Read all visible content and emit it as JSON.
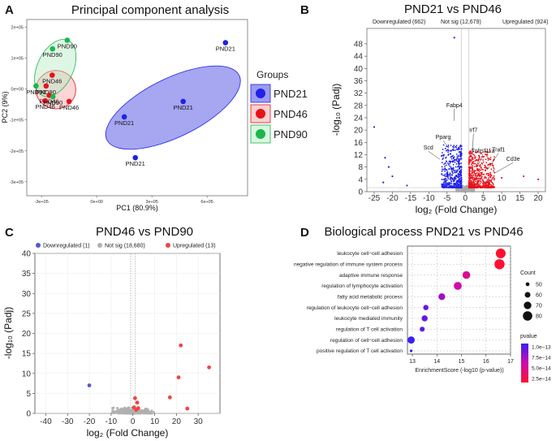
{
  "panels": {
    "a": {
      "letter": "A",
      "title": "Principal component analysis"
    },
    "b": {
      "letter": "B",
      "title": "PND21 vs PND46"
    },
    "c": {
      "letter": "C",
      "title": "PND46 vs PND90"
    },
    "d": {
      "letter": "D",
      "title": "Biological process PND21 vs PND46"
    }
  },
  "chart_data": [
    {
      "id": "pca",
      "type": "scatter",
      "title": "Principal component analysis",
      "xlabel": "PC1 (80.9%)",
      "ylabel": "PC2 (9%)",
      "xlim": [
        -380000,
        820000
      ],
      "ylim": [
        -345000,
        225000
      ],
      "xticks": [
        {
          "v": -300000,
          "label": "-3e+05"
        },
        {
          "v": 0,
          "label": "0e+00"
        },
        {
          "v": 300000,
          "label": "3e+05"
        },
        {
          "v": 600000,
          "label": "6e+05"
        }
      ],
      "yticks": [
        {
          "v": 200000,
          "label": "2e+05"
        },
        {
          "v": 100000,
          "label": "1e+05"
        },
        {
          "v": 0,
          "label": "0e+00"
        },
        {
          "v": -100000,
          "label": "-1e+05"
        },
        {
          "v": -200000,
          "label": "-2e+05"
        },
        {
          "v": -300000,
          "label": "-3e+05"
        }
      ],
      "legend_title": "Groups",
      "groups": [
        {
          "name": "PND21",
          "color": "#1f22e8",
          "fill": "#3a3ae0",
          "points": [
            {
              "x": 700000,
              "y": 150000,
              "label": "PND21"
            },
            {
              "x": 470000,
              "y": -40000,
              "label": "PND21"
            },
            {
              "x": 150000,
              "y": -90000,
              "label": "PND21"
            },
            {
              "x": 210000,
              "y": -222000,
              "label": "PND21"
            }
          ],
          "ellipse": {
            "cx": 415000,
            "cy": -60000,
            "rx": 400000,
            "ry": 95000,
            "angle_deg": 26
          }
        },
        {
          "name": "PND46",
          "color": "#e8111a",
          "fill": "#f4a5a5",
          "points": [
            {
              "x": -242000,
              "y": 45000,
              "label": "PND46"
            },
            {
              "x": -275000,
              "y": 10000,
              "label": "PND90"
            },
            {
              "x": -258000,
              "y": -20000,
              "label": "PND46"
            },
            {
              "x": -280000,
              "y": -38000,
              "label": "PND46"
            },
            {
              "x": -150000,
              "y": -40000,
              "label": "PND46"
            }
          ],
          "ellipse": {
            "cx": -222000,
            "cy": -2000,
            "rx": 108000,
            "ry": 62000,
            "angle_deg": 0
          }
        },
        {
          "name": "PND90",
          "color": "#19b84a",
          "fill": "#b9ecc6",
          "points": [
            {
              "x": -160000,
              "y": 158000,
              "label": "PND90"
            },
            {
              "x": -240000,
              "y": 130000,
              "label": "PND90"
            },
            {
              "x": -330000,
              "y": 10000,
              "label": "PND90"
            },
            {
              "x": -238000,
              "y": -25000,
              "label": "PND90"
            }
          ],
          "ellipse": {
            "cx": -225000,
            "cy": 68000,
            "rx": 165000,
            "ry": 58000,
            "angle_deg": 65
          }
        }
      ]
    },
    {
      "id": "volcano_b",
      "type": "scatter",
      "title": "PND21 vs PND46",
      "xlabel": "log₂ (Fold Change)",
      "ylabel": "-log₁₀ (Padj)",
      "xlim": [
        -27,
        22
      ],
      "ylim": [
        0,
        53
      ],
      "xticks": [
        -25,
        -20,
        -15,
        -10,
        -5,
        0,
        5,
        10,
        15,
        20
      ],
      "yticks": [
        0,
        4,
        8,
        12,
        16,
        20,
        24,
        28,
        32,
        36,
        40,
        44,
        48
      ],
      "legend": [
        {
          "label": "Downregulated (662)",
          "color": "#1f22e8"
        },
        {
          "label": "Not sig (12,679)",
          "color": "#aaaaaa"
        },
        {
          "label": "Upregulated (924)",
          "color": "#e8111a"
        }
      ],
      "annotations": [
        {
          "label": "Fabp4",
          "x": -3.0,
          "y": 23.0
        },
        {
          "label": "Pparg",
          "x": -4.5,
          "y": 14.0
        },
        {
          "label": "Scd",
          "x": -7.0,
          "y": 10.5
        },
        {
          "label": "Irf7",
          "x": 2.0,
          "y": 12.0
        },
        {
          "label": "Tnfrsf11a",
          "x": 3.5,
          "y": 8.5
        },
        {
          "label": "Traf1",
          "x": 6.0,
          "y": 7.0
        },
        {
          "label": "Cd3e",
          "x": 8.0,
          "y": 6.0
        }
      ],
      "outliers": [
        {
          "x": -25.0,
          "y": 21.0,
          "group": "down"
        },
        {
          "x": -22.0,
          "y": 11.0,
          "group": "down"
        },
        {
          "x": -21.0,
          "y": 8.0,
          "group": "down"
        },
        {
          "x": -20.0,
          "y": 5.0,
          "group": "down"
        },
        {
          "x": -22.5,
          "y": 3.0,
          "group": "down"
        },
        {
          "x": -16.0,
          "y": 2.0,
          "group": "down"
        },
        {
          "x": -3.0,
          "y": 50.0,
          "group": "down"
        },
        {
          "x": 16.0,
          "y": 5.0,
          "group": "up"
        },
        {
          "x": 20.0,
          "y": 4.0,
          "group": "up"
        },
        {
          "x": 10.0,
          "y": 4.5,
          "group": "up"
        }
      ]
    },
    {
      "id": "volcano_c",
      "type": "scatter",
      "title": "PND46 vs PND90",
      "xlabel": "log₂ (Fold Change)",
      "ylabel": "-log₁₀ (Padj)",
      "xlim": [
        -45,
        40
      ],
      "ylim": [
        0,
        40
      ],
      "xticks": [
        -40,
        -30,
        -20,
        -10,
        0,
        10,
        20,
        30
      ],
      "yticks": [
        0,
        5,
        10,
        15,
        20,
        25,
        30,
        35,
        40
      ],
      "legend": [
        {
          "label": "Downregulated (1)",
          "color": "#5555d6"
        },
        {
          "label": "Not sig (18,680)",
          "color": "#b0b0b0"
        },
        {
          "label": "Upregulated (13)",
          "color": "#ef4444"
        }
      ],
      "points": [
        {
          "x": -20.0,
          "y": 7.0,
          "group": "down"
        },
        {
          "x": 22.0,
          "y": 17.0,
          "group": "up"
        },
        {
          "x": 35.0,
          "y": 11.5,
          "group": "up"
        },
        {
          "x": 21.0,
          "y": 9.0,
          "group": "up"
        },
        {
          "x": 17.0,
          "y": 4.0,
          "group": "up"
        },
        {
          "x": 25.0,
          "y": 1.2,
          "group": "up"
        },
        {
          "x": 1.0,
          "y": 3.8,
          "group": "up"
        },
        {
          "x": 2.0,
          "y": 2.7,
          "group": "up"
        },
        {
          "x": 0.5,
          "y": 1.5,
          "group": "up"
        },
        {
          "x": 2.5,
          "y": 1.3,
          "group": "up"
        },
        {
          "x": 1.5,
          "y": 0.9,
          "group": "up"
        }
      ]
    },
    {
      "id": "go_bubble",
      "type": "scatter",
      "title": "Biological process PND21 vs PND46",
      "xlabel": "EnrichmentScore (-log10 (p-value))",
      "xlim": [
        12.8,
        17.0
      ],
      "xticks": [
        13,
        14,
        15,
        16,
        17
      ],
      "terms": [
        {
          "term": "leukocyte cell−cell adhesion",
          "score": 16.6,
          "count": 82,
          "pvalue": 2.5e-17
        },
        {
          "term": "negative regulation of immune system process",
          "score": 16.55,
          "count": 84,
          "pvalue": 2.8e-17
        },
        {
          "term": "adaptive immune response",
          "score": 15.2,
          "count": 71,
          "pvalue": 6.3e-16
        },
        {
          "term": "regulation of lymphocyte activation",
          "score": 14.85,
          "count": 72,
          "pvalue": 1.4e-15
        },
        {
          "term": "fatty acid metabolic process",
          "score": 14.2,
          "count": 66,
          "pvalue": 6.3e-15
        },
        {
          "term": "regulation of leukocyte cell−cell adhesion",
          "score": 13.55,
          "count": 58,
          "pvalue": 2.8e-14
        },
        {
          "term": "leukocyte mediated immunity",
          "score": 13.5,
          "count": 62,
          "pvalue": 3.2e-14
        },
        {
          "term": "regulation of T cell activation",
          "score": 13.4,
          "count": 56,
          "pvalue": 4e-14
        },
        {
          "term": "regulation of cell−cell adhesion",
          "score": 12.95,
          "count": 68,
          "pvalue": 1.1e-13
        },
        {
          "term": "positive regulation of T cell activation",
          "score": 12.95,
          "count": 44,
          "pvalue": 1.1e-13
        }
      ],
      "size_legend": {
        "title": "Count",
        "values": [
          50,
          60,
          70,
          80
        ]
      },
      "color_legend": {
        "title": "pvalue",
        "labels": [
          "1.0e−13",
          "7.5e−14",
          "5.0e−14",
          "2.5e−14"
        ],
        "colors": [
          "#3b1ff2",
          "#cc0bb0",
          "#ff1030"
        ]
      }
    }
  ]
}
